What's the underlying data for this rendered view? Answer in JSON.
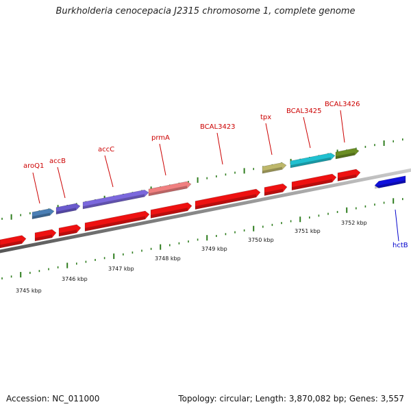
{
  "title": "Burkholderia cenocepacia J2315 chromosome 1, complete genome",
  "footer": {
    "accession_label": "Accession: NC_011000",
    "stats_label": "Topology: circular; Length: 3,870,082 bp; Genes: 3,557"
  },
  "colors": {
    "backbone": "#8a8a8a",
    "tick": "#2e7d1e",
    "forward_label": "#cc0000",
    "reverse_label": "#0000cc",
    "cds": "#ee1111"
  },
  "ruler_labels": [
    "3745 kbp",
    "3746 kbp",
    "3747 kbp",
    "3748 kbp",
    "3749 kbp",
    "3750 kbp",
    "3751 kbp",
    "3752 kbp"
  ],
  "genes": [
    {
      "name": "aroQ1",
      "strand": "forward",
      "color": "#4a7fb5"
    },
    {
      "name": "accB",
      "strand": "forward",
      "color": "#6a5acd"
    },
    {
      "name": "accC",
      "strand": "forward",
      "color": "#7b68dd"
    },
    {
      "name": "prmA",
      "strand": "forward",
      "color": "#f08080"
    },
    {
      "name": "BCAL3423",
      "strand": "forward",
      "color": "#ee1111"
    },
    {
      "name": "tpx",
      "strand": "forward",
      "color": "#bdb76b"
    },
    {
      "name": "BCAL3425",
      "strand": "forward",
      "color": "#20c0d0"
    },
    {
      "name": "BCAL3426",
      "strand": "forward",
      "color": "#6b8e23"
    },
    {
      "name": "hctB",
      "strand": "reverse",
      "color": "#1010dd"
    }
  ]
}
